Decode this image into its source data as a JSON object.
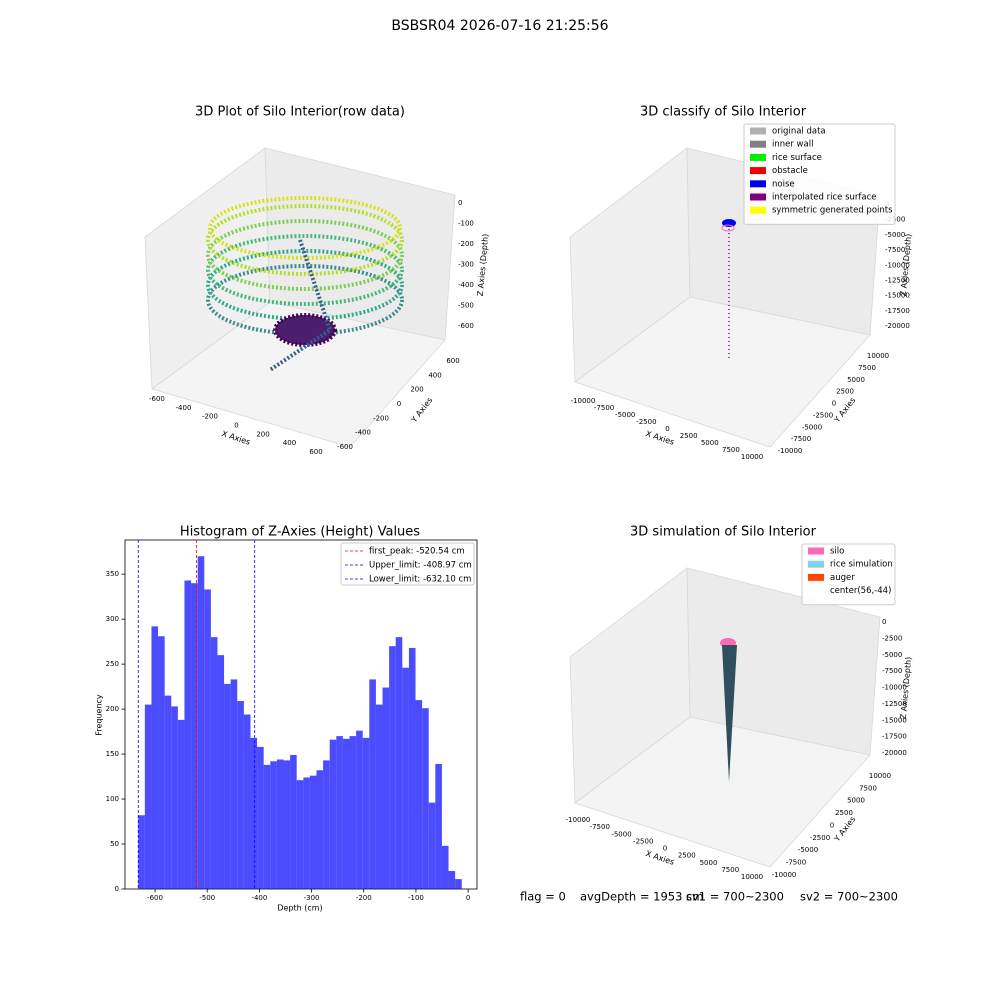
{
  "suptitle": "BSBSR04 2026-07-16 21:25:56",
  "footer": [
    "flag = 0",
    "avgDepth = 1953 cm",
    "sv1 = 700~2300",
    "sv2 = 700~2300"
  ],
  "chart_data": [
    {
      "type": "scatter3d",
      "title": "3D Plot of Silo Interior(row data)",
      "xlabel": "X Axies",
      "ylabel": "Y Axies",
      "zlabel": "Z Axies (Depth)",
      "xlim": [
        -700,
        700
      ],
      "ylim": [
        -700,
        700
      ],
      "zlim": [
        -700,
        50
      ],
      "xticks": [
        -600,
        -400,
        -200,
        0,
        200,
        400,
        600
      ],
      "yticks": [
        -600,
        -400,
        -200,
        0,
        200,
        400,
        600
      ],
      "zticks": [
        0,
        -100,
        -200,
        -300,
        -400,
        -500,
        -600
      ]
    },
    {
      "type": "scatter3d",
      "title": "3D classify of Silo Interior",
      "xlabel": "X Axies",
      "ylabel": "Y Axies",
      "zlabel": "Z Axies (Depth)",
      "xlim": [
        -11000,
        11000
      ],
      "ylim": [
        -11000,
        11000
      ],
      "zlim": [
        -22000,
        1000
      ],
      "xticks": [
        -10000,
        -7500,
        -5000,
        -2500,
        0,
        2500,
        5000,
        7500,
        10000
      ],
      "yticks": [
        -10000,
        -7500,
        -5000,
        -2500,
        0,
        2500,
        5000,
        7500,
        10000
      ],
      "zticks": [
        0,
        -2500,
        -5000,
        -7500,
        -10000,
        -12500,
        -15000,
        -17500,
        -20000
      ],
      "legend": [
        {
          "name": "original data",
          "color": "#b0b0b0"
        },
        {
          "name": "inner wall",
          "color": "#808080"
        },
        {
          "name": "rice surface",
          "color": "#00ee00"
        },
        {
          "name": "obstacle",
          "color": "#ee0000"
        },
        {
          "name": "noise",
          "color": "#0000ee"
        },
        {
          "name": "interpolated rice surface",
          "color": "#800080"
        },
        {
          "name": "symmetric generated points",
          "color": "#ffff00"
        }
      ]
    },
    {
      "type": "histogram",
      "title": "Histogram of Z-Axies (Height) Values",
      "xlabel": "Depth (cm)",
      "ylabel": "Frequency",
      "color": "#0000ff",
      "bins": [
        -632.1,
        -619.45,
        -606.8,
        -594.15,
        -581.5,
        -568.85,
        -556.2,
        -543.55,
        -530.9,
        -518.25,
        -505.6,
        -492.95,
        -480.3,
        -467.65,
        -455.0,
        -442.35,
        -429.7,
        -417.05,
        -404.4,
        -391.75,
        -379.1,
        -366.45,
        -353.8,
        -341.15,
        -328.5,
        -315.85,
        -303.2,
        -290.55,
        -277.9,
        -265.25,
        -252.6,
        -239.95,
        -227.3,
        -214.65,
        -202.0,
        -189.35,
        -176.7,
        -164.05,
        -151.4,
        -138.75,
        -126.1,
        -113.45,
        -100.8,
        -88.15,
        -75.5,
        -62.85,
        -50.2,
        -37.55,
        -24.9,
        -12.25
      ],
      "values": [
        82,
        205,
        292,
        281,
        215,
        203,
        188,
        343,
        340,
        370,
        333,
        280,
        260,
        228,
        233,
        209,
        194,
        168,
        158,
        138,
        142,
        144,
        143,
        149,
        121,
        124,
        126,
        132,
        143,
        166,
        170,
        167,
        170,
        176,
        168,
        233,
        205,
        224,
        270,
        280,
        246,
        268,
        210,
        201,
        96,
        139,
        48,
        20,
        11
      ],
      "lines": [
        {
          "name": "first_peak: -520.54 cm",
          "value": -520.54,
          "color": "#ff0000"
        },
        {
          "name": "Upper_limit: -408.97 cm",
          "value": -408.97,
          "color": "#0000ff"
        },
        {
          "name": "Lower_limit: -632.10 cm",
          "value": -632.1,
          "color": "#0000ff"
        }
      ],
      "xlim": [
        -657.5,
        17
      ],
      "ylim": [
        0,
        388
      ],
      "xticks": [
        -600,
        -500,
        -400,
        -300,
        -200,
        -100,
        0
      ],
      "yticks": [
        0,
        50,
        100,
        150,
        200,
        250,
        300,
        350
      ]
    },
    {
      "type": "surface3d",
      "title": "3D simulation of Silo Interior",
      "xlabel": "X Axies",
      "ylabel": "Y Axies",
      "zlabel": "Z Axies (Depth)",
      "xlim": [
        -11000,
        11000
      ],
      "ylim": [
        -11000,
        11000
      ],
      "zlim": [
        -22000,
        1000
      ],
      "xticks": [
        -10000,
        -7500,
        -5000,
        -2500,
        0,
        2500,
        5000,
        7500,
        10000
      ],
      "yticks": [
        -10000,
        -7500,
        -5000,
        -2500,
        0,
        2500,
        5000,
        7500,
        10000
      ],
      "zticks": [
        0,
        -2500,
        -5000,
        -7500,
        -10000,
        -12500,
        -15000,
        -17500,
        -20000
      ],
      "legend": [
        {
          "name": "silo",
          "color": "#ff69b4"
        },
        {
          "name": "rice simulation",
          "color": "#87ceeb"
        },
        {
          "name": "auger",
          "color": "#ff4500"
        },
        {
          "name": "center(56,-44)",
          "color": "#ffffff"
        }
      ]
    }
  ]
}
